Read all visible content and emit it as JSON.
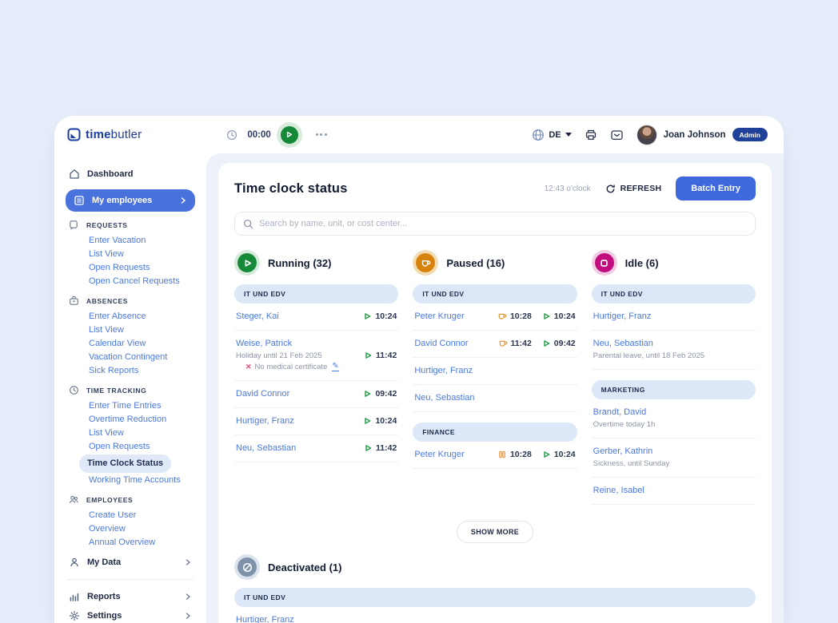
{
  "theme": {
    "accent": "#3e68de",
    "link_blue": "#4a79e2",
    "active_pill": "#4a72dd",
    "badge_blue": "#20419a",
    "panel_bg": "#edf2fa"
  },
  "topbar": {
    "logo_bold": "time",
    "logo_light": "butler",
    "timer_value": "00:00",
    "language": "DE",
    "user_name": "Joan Johnson",
    "user_badge": "Admin"
  },
  "sidebar": {
    "dashboard_label": "Dashboard",
    "my_employees_label": "My employees",
    "sections": [
      {
        "label": "REQUESTS",
        "icon": "request-icon",
        "items": [
          {
            "label": "Enter Vacation"
          },
          {
            "label": "List View"
          },
          {
            "label": "Open Requests"
          },
          {
            "label": "Open Cancel Requests"
          }
        ]
      },
      {
        "label": "ABSENCES",
        "icon": "absence-icon",
        "items": [
          {
            "label": "Enter Absence"
          },
          {
            "label": "List View"
          },
          {
            "label": "Calendar View"
          },
          {
            "label": "Vacation Contingent"
          },
          {
            "label": "Sick Reports"
          }
        ]
      },
      {
        "label": "TIME TRACKING",
        "icon": "clock-icon",
        "items": [
          {
            "label": "Enter Time Entries"
          },
          {
            "label": "Overtime Reduction"
          },
          {
            "label": "List View"
          },
          {
            "label": "Open Requests"
          },
          {
            "label": "Time Clock Status",
            "active": true
          },
          {
            "label": "Working Time Accounts"
          }
        ]
      },
      {
        "label": "EMPLOYEES",
        "icon": "people-icon",
        "items": [
          {
            "label": "Create User"
          },
          {
            "label": "Overview"
          },
          {
            "label": "Annual Overview"
          }
        ]
      }
    ],
    "footer_items": [
      {
        "label": "My Data",
        "icon": "person-icon"
      },
      {
        "label": "Reports",
        "icon": "chart-icon",
        "divider_before": true
      },
      {
        "label": "Settings",
        "icon": "gear-icon"
      }
    ]
  },
  "main": {
    "title": "Time clock status",
    "time_text": "12:43 o'clock",
    "refresh_label": "REFRESH",
    "batch_entry_label": "Batch Entry",
    "search_placeholder": "Search by name, unit, or cost center...",
    "show_more_label": "SHOW MORE",
    "statuses": [
      {
        "label": "Running",
        "count": "(32)",
        "icon": "play",
        "color": "#168939",
        "ring": "#d7ebdb",
        "groups": [
          {
            "name": "IT UND EDV",
            "rows": [
              {
                "name": "Steger, Kai",
                "times": [
                  {
                    "type": "play",
                    "value": "10:24"
                  }
                ]
              },
              {
                "name": "Weise, Patrick",
                "note": "Holiday until 21 Feb 2025",
                "warning": "No medical certificate",
                "times": [
                  {
                    "type": "play",
                    "value": "11:42"
                  }
                ]
              },
              {
                "name": "David Connor",
                "times": [
                  {
                    "type": "play",
                    "value": "09:42"
                  }
                ]
              },
              {
                "name": "Hurtiger, Franz",
                "times": [
                  {
                    "type": "play",
                    "value": "10:24"
                  }
                ]
              },
              {
                "name": "Neu, Sebastian",
                "times": [
                  {
                    "type": "play",
                    "value": "11:42"
                  }
                ]
              }
            ]
          }
        ]
      },
      {
        "label": "Paused",
        "count": "(16)",
        "icon": "cup",
        "color": "#d8820e",
        "ring": "#f2dcb4",
        "groups": [
          {
            "name": "IT UND EDV",
            "rows": [
              {
                "name": "Peter Kruger",
                "times": [
                  {
                    "type": "cup",
                    "value": "10:28"
                  },
                  {
                    "type": "play",
                    "value": "10:24"
                  }
                ]
              },
              {
                "name": "David Connor",
                "times": [
                  {
                    "type": "cup",
                    "value": "11:42"
                  },
                  {
                    "type": "play",
                    "value": "09:42"
                  }
                ]
              },
              {
                "name": "Hurtiger, Franz",
                "times": []
              },
              {
                "name": "Neu, Sebastian",
                "times": []
              }
            ]
          },
          {
            "name": "FINANCE",
            "rows": [
              {
                "name": "Peter Kruger",
                "times": [
                  {
                    "type": "pause",
                    "value": "10:28"
                  },
                  {
                    "type": "play",
                    "value": "10:24"
                  }
                ]
              }
            ]
          }
        ]
      },
      {
        "label": "Idle",
        "count": "(6)",
        "icon": "stop",
        "color": "#c10d7d",
        "ring": "#f0cbe2",
        "groups": [
          {
            "name": "IT UND EDV",
            "rows": [
              {
                "name": "Hurtiger, Franz",
                "times": []
              },
              {
                "name": "Neu, Sebastian",
                "note": "Parental leave, until 18 Feb 2025",
                "times": []
              }
            ]
          },
          {
            "name": "MARKETING",
            "rows": [
              {
                "name": "Brandt, David",
                "note": "Overtime today 1h",
                "times": []
              },
              {
                "name": "Gerber, Kathrin",
                "note": "Sickness, until Sunday",
                "times": []
              },
              {
                "name": "Reine, Isabel",
                "times": []
              }
            ]
          }
        ]
      },
      {
        "label": "Deactivated",
        "count": "(1)",
        "icon": "slash",
        "color": "#7e93aa",
        "ring": "#dae3ec",
        "full_width": true,
        "groups": [
          {
            "name": "IT UND EDV",
            "rows": [
              {
                "name": "Hurtiger, Franz",
                "times": []
              }
            ]
          }
        ]
      }
    ]
  }
}
